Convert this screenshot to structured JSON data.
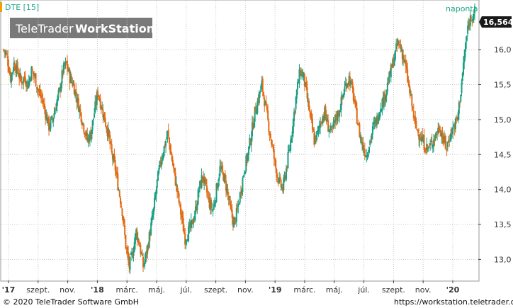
{
  "chart_data": {
    "type": "candlestick",
    "symbol_label": "DTE [15]",
    "period_label": "naponta",
    "last_value_label": "16,564",
    "ylim": [
      12.7,
      16.7
    ],
    "grid": true,
    "y_ticks": [
      {
        "value": 13.0,
        "label": "13,0"
      },
      {
        "value": 13.5,
        "label": "13,5"
      },
      {
        "value": 14.0,
        "label": "14,0"
      },
      {
        "value": 14.5,
        "label": "14,5"
      },
      {
        "value": 15.0,
        "label": "15,0"
      },
      {
        "value": 15.5,
        "label": "15,5"
      },
      {
        "value": 16.0,
        "label": "16,0"
      }
    ],
    "x_ticks": [
      {
        "label": "'17",
        "bold": true
      },
      {
        "label": "szept.",
        "bold": false
      },
      {
        "label": "nov.",
        "bold": false
      },
      {
        "label": "'18",
        "bold": true
      },
      {
        "label": "márc.",
        "bold": false
      },
      {
        "label": "máj.",
        "bold": false
      },
      {
        "label": "júl.",
        "bold": false
      },
      {
        "label": "szept.",
        "bold": false
      },
      {
        "label": "nov.",
        "bold": false
      },
      {
        "label": "'19",
        "bold": true
      },
      {
        "label": "márc.",
        "bold": false
      },
      {
        "label": "máj.",
        "bold": false
      },
      {
        "label": "júl.",
        "bold": false
      },
      {
        "label": "szept.",
        "bold": false
      },
      {
        "label": "nov.",
        "bold": false
      },
      {
        "label": "'20",
        "bold": true
      }
    ],
    "series_close": [
      16.0,
      15.9,
      15.6,
      15.8,
      15.7,
      15.55,
      15.6,
      15.5,
      15.7,
      15.6,
      15.4,
      15.3,
      15.1,
      14.9,
      15.0,
      15.2,
      15.4,
      15.7,
      15.8,
      15.6,
      15.5,
      15.3,
      15.1,
      14.9,
      14.7,
      14.8,
      15.1,
      15.4,
      15.2,
      15.0,
      14.8,
      14.5,
      14.3,
      14.0,
      13.7,
      13.2,
      12.9,
      13.1,
      13.4,
      13.2,
      12.9,
      13.1,
      13.4,
      13.7,
      14.1,
      14.4,
      14.6,
      14.8,
      14.5,
      14.2,
      13.9,
      13.6,
      13.3,
      13.4,
      13.5,
      13.7,
      14.0,
      14.2,
      14.0,
      13.8,
      13.7,
      14.0,
      14.3,
      14.2,
      14.0,
      13.7,
      13.5,
      13.7,
      14.0,
      14.3,
      14.5,
      14.8,
      15.1,
      15.3,
      15.5,
      15.2,
      14.9,
      14.6,
      14.3,
      14.1,
      14.0,
      14.3,
      14.6,
      15.0,
      15.4,
      15.7,
      15.6,
      15.3,
      15.0,
      14.7,
      14.8,
      15.0,
      15.1,
      14.9,
      14.8,
      15.0,
      15.1,
      15.3,
      15.5,
      15.6,
      15.4,
      15.1,
      14.8,
      14.6,
      14.5,
      14.7,
      14.9,
      15.0,
      15.2,
      15.3,
      15.5,
      15.7,
      15.9,
      16.1,
      16.0,
      15.8,
      15.5,
      15.2,
      14.9,
      14.8,
      14.7,
      14.6,
      14.6,
      14.7,
      14.8,
      14.9,
      14.7,
      14.6,
      14.8,
      14.9,
      15.0,
      15.4,
      15.9,
      16.3,
      16.5,
      16.55
    ]
  },
  "watermark": {
    "brand_light": "TeleTrader",
    "brand_bold": "WorkStation"
  },
  "footer": {
    "copyright": "© 2020 TeleTrader Software GmbH",
    "url": "https://workstation.teletrader.com"
  },
  "colors": {
    "up": "#1a9e82",
    "down": "#e26a12",
    "grid": "#c9c9c9",
    "axis": "#444444",
    "symbol": "#27a78a",
    "period": "#27a78a",
    "watermark_bg": "#6a6a6a",
    "tag_bg": "#1a1a1a",
    "tag_fg": "#ffffff",
    "marker": "#f0a000"
  }
}
